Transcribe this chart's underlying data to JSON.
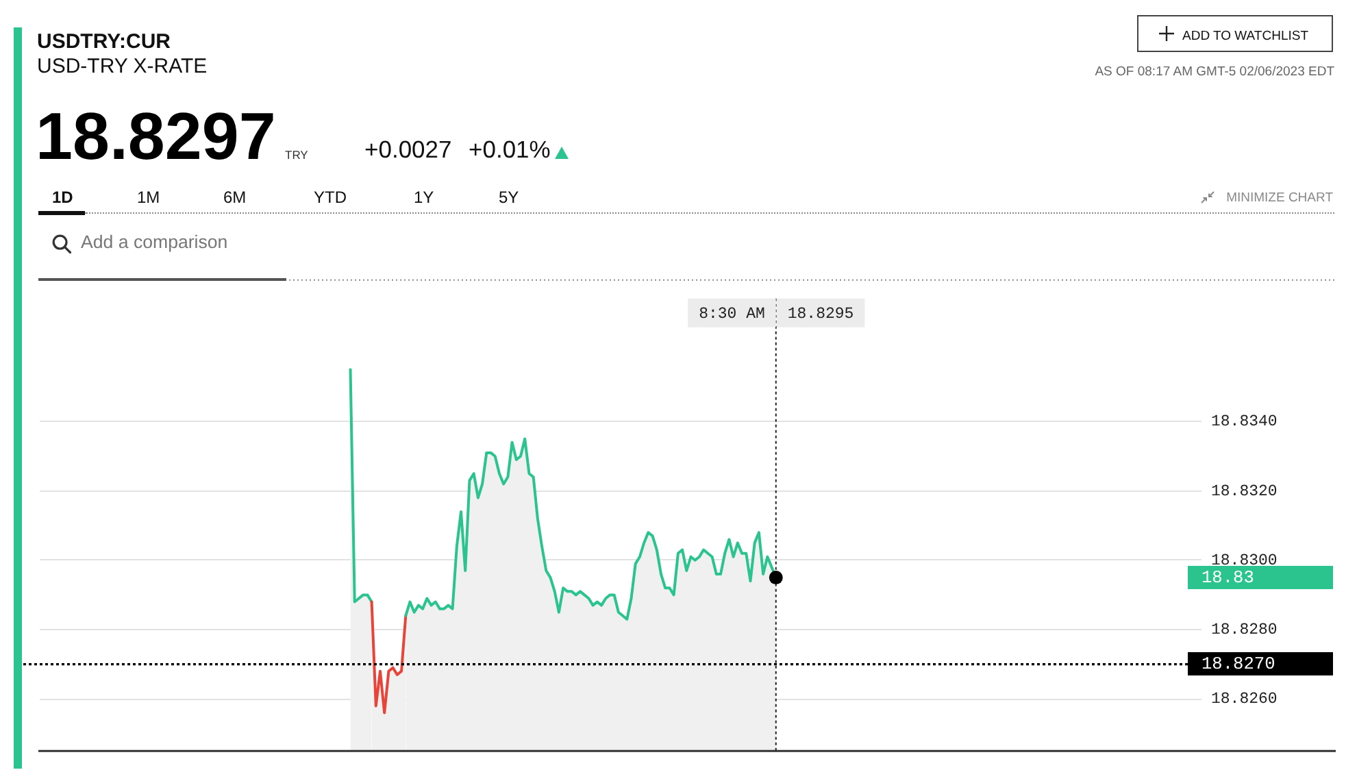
{
  "chart_data": {
    "type": "area",
    "title": "USDTRY:CUR",
    "subtitle": "USD-TRY X-RATE",
    "categories": [
      null,
      null,
      null,
      null,
      null,
      null,
      null,
      null,
      null,
      null,
      null,
      null,
      null,
      null,
      null,
      null,
      null,
      null,
      null,
      null,
      null,
      null,
      null,
      null,
      null,
      null,
      null,
      null,
      null,
      null,
      null,
      null,
      null,
      null,
      null,
      null,
      null,
      null,
      null,
      null,
      null,
      null,
      null,
      null,
      null,
      null,
      null,
      null,
      null,
      null,
      null,
      null,
      null,
      null,
      null,
      null,
      null,
      null,
      null,
      null,
      null,
      null,
      null,
      null,
      null,
      null,
      null,
      null,
      null,
      null,
      null,
      null,
      null,
      null,
      null,
      null,
      null,
      null,
      null,
      null,
      null,
      null,
      null,
      null,
      null,
      null,
      null,
      null,
      null,
      null,
      null,
      null,
      null,
      null,
      null,
      null,
      null,
      null,
      null,
      null,
      null,
      null,
      null,
      null,
      null,
      null,
      null,
      null,
      null,
      null,
      null,
      null,
      null,
      null,
      null,
      null,
      null,
      null,
      null,
      null,
      null,
      null,
      null,
      null,
      null,
      null,
      null,
      null,
      null,
      null,
      null,
      null,
      null,
      null,
      null,
      null,
      null,
      null,
      null,
      null,
      null,
      null,
      null,
      null,
      null,
      null,
      null,
      null,
      null,
      null,
      null,
      null,
      null,
      null,
      null,
      null,
      null,
      null,
      null,
      null,
      null,
      null,
      null,
      null,
      null,
      null,
      null,
      null,
      null,
      null,
      null,
      null,
      null,
      null,
      null,
      null,
      null,
      null,
      null,
      null,
      null,
      null,
      null,
      null,
      null,
      null,
      null,
      null,
      null,
      null,
      null,
      null,
      null,
      null,
      null,
      null,
      null,
      null,
      null,
      null,
      null,
      null,
      null,
      null,
      null,
      null,
      null,
      null,
      null,
      null,
      null,
      null,
      null,
      null,
      null,
      null,
      null,
      null,
      null,
      null,
      null,
      null,
      null,
      null,
      null,
      null,
      null,
      null,
      null,
      null,
      null,
      null,
      null,
      null,
      null,
      null,
      null,
      null,
      null,
      null,
      null,
      null,
      null,
      null,
      null,
      null,
      null,
      null,
      null,
      null,
      null,
      null,
      null,
      null,
      null,
      null,
      null,
      null,
      null,
      null,
      null,
      null,
      null,
      null,
      null,
      null,
      null,
      null,
      null,
      null,
      null,
      null,
      null,
      null
    ],
    "series": [
      {
        "color": "#2bc48f",
        "values": [
          null,
          null,
          null,
          null,
          null,
          null,
          null,
          null,
          null,
          null,
          null,
          null,
          null,
          null,
          null,
          null,
          null,
          null,
          null,
          null,
          null,
          null,
          null,
          null,
          null,
          null,
          null,
          null,
          null,
          null,
          null,
          null,
          null,
          null,
          null,
          null,
          null,
          null,
          null,
          null,
          null,
          null,
          null,
          null,
          null,
          null,
          null,
          null,
          null,
          null,
          null,
          null,
          null,
          null,
          null,
          null,
          null,
          null,
          null,
          null,
          null,
          null,
          null,
          null,
          null,
          null,
          null,
          null,
          null,
          null,
          null,
          null,
          null,
          18.8355,
          18.8288,
          18.8289,
          18.829,
          18.829,
          18.8288,
          18.8258,
          18.8268,
          18.8256,
          18.8268,
          18.8269,
          18.8267,
          18.8268,
          18.8284,
          18.8288,
          18.8285,
          18.8287,
          18.8286,
          18.8289,
          18.8287,
          18.8288,
          18.8286,
          18.8286,
          18.8287,
          18.8286,
          18.8304,
          18.8314,
          18.8297,
          18.8323,
          18.8325,
          18.8318,
          18.8322,
          18.8331,
          18.8331,
          18.833,
          18.8325,
          18.8322,
          18.8324,
          18.8334,
          18.8329,
          18.833,
          18.8335,
          18.8325,
          18.8324,
          18.8312,
          18.8304,
          18.8297,
          18.8295,
          18.8291,
          18.8285,
          18.8292,
          18.8291,
          18.8291,
          18.829,
          18.8291,
          18.829,
          18.8289,
          18.8287,
          18.8288,
          18.8287,
          18.8289,
          18.829,
          18.829,
          18.8285,
          18.8284,
          18.8283,
          18.8289,
          18.8299,
          18.8301,
          18.8305,
          18.8308,
          18.8307,
          18.8303,
          18.8296,
          18.8292,
          18.8292,
          18.829,
          18.8302,
          18.8303,
          18.8297,
          18.8301,
          18.83,
          18.8301,
          18.8303,
          18.8302,
          18.8301,
          18.8296,
          18.8296,
          18.8302,
          18.8306,
          18.8301,
          18.8305,
          18.8302,
          18.8302,
          18.8294,
          18.8305,
          18.8308,
          18.8296,
          18.8301,
          18.8298,
          18.8295,
          null,
          null,
          null,
          null,
          null,
          null,
          null,
          null,
          null,
          null,
          null,
          null,
          null,
          null,
          null,
          null,
          null,
          null,
          null,
          null,
          null,
          null,
          null,
          null,
          null,
          null,
          null,
          null,
          null,
          null,
          null,
          null,
          null,
          null,
          null,
          null,
          null,
          null,
          null,
          null,
          null,
          null,
          null,
          null,
          null,
          null,
          null,
          null,
          null,
          null,
          null,
          null,
          null,
          null,
          null,
          null,
          null,
          null,
          null,
          null,
          null,
          null,
          null,
          null,
          null,
          null,
          null,
          null,
          null,
          null,
          null,
          null,
          null,
          null,
          null,
          null,
          null,
          null,
          null,
          null,
          null,
          null,
          null,
          null,
          null,
          null,
          null,
          null,
          null,
          null,
          null,
          null,
          null,
          null,
          null,
          null,
          null,
          null,
          null,
          null
        ],
        "colors": [
          null,
          null,
          null,
          null,
          null,
          null,
          null,
          null,
          null,
          null,
          null,
          null,
          null,
          null,
          null,
          null,
          null,
          null,
          null,
          null,
          null,
          null,
          null,
          null,
          null,
          null,
          null,
          null,
          null,
          null,
          null,
          null,
          null,
          null,
          null,
          null,
          null,
          null,
          null,
          null,
          null,
          null,
          null,
          null,
          null,
          null,
          null,
          null,
          null,
          null,
          null,
          null,
          null,
          null,
          null,
          null,
          null,
          null,
          null,
          null,
          null,
          null,
          null,
          null,
          null,
          null,
          null,
          null,
          null,
          null,
          null,
          null,
          null,
          "#2bc48f",
          "#2bc48f",
          "#2bc48f",
          "#2bc48f",
          "#2bc48f",
          "#2bc48f",
          "#e8443a",
          "#e8443a",
          "#e8443a",
          "#e8443a",
          "#e8443a",
          "#e8443a",
          "#e8443a",
          "#2bc48f",
          "#2bc48f",
          "#2bc48f",
          "#2bc48f",
          "#2bc48f",
          "#2bc48f",
          "#2bc48f",
          "#2bc48f",
          "#2bc48f",
          "#2bc48f",
          "#2bc48f",
          "#2bc48f",
          "#2bc48f",
          "#2bc48f",
          "#2bc48f",
          "#2bc48f",
          "#2bc48f",
          "#2bc48f",
          "#2bc48f",
          "#2bc48f",
          "#2bc48f",
          "#2bc48f",
          "#2bc48f",
          "#2bc48f",
          "#2bc48f",
          "#2bc48f",
          "#2bc48f",
          "#2bc48f",
          "#2bc48f",
          "#2bc48f",
          "#2bc48f",
          "#2bc48f",
          "#2bc48f",
          "#2bc48f",
          "#2bc48f",
          "#2bc48f",
          "#2bc48f",
          "#2bc48f",
          "#2bc48f",
          "#2bc48f",
          "#2bc48f",
          "#2bc48f",
          "#2bc48f",
          "#2bc48f",
          "#2bc48f",
          "#2bc48f",
          "#2bc48f",
          "#2bc48f",
          "#2bc48f",
          "#2bc48f",
          "#2bc48f",
          "#2bc48f",
          "#2bc48f",
          "#2bc48f",
          "#2bc48f",
          "#2bc48f",
          "#2bc48f",
          "#2bc48f",
          "#2bc48f",
          "#2bc48f",
          "#2bc48f",
          "#2bc48f",
          "#2bc48f",
          "#2bc48f",
          "#2bc48f",
          "#2bc48f",
          "#2bc48f",
          "#2bc48f",
          "#2bc48f",
          "#2bc48f",
          "#2bc48f",
          "#2bc48f",
          "#2bc48f",
          "#2bc48f",
          "#2bc48f",
          "#2bc48f",
          "#2bc48f",
          "#2bc48f",
          "#2bc48f",
          "#2bc48f",
          "#2bc48f",
          "#2bc48f",
          "#2bc48f",
          "#2bc48f",
          "#2bc48f",
          "#2bc48f",
          "#2bc48f",
          "#2bc48f",
          null,
          null,
          null,
          null,
          null,
          null,
          null,
          null,
          null,
          null,
          null,
          null,
          null,
          null,
          null,
          null,
          null,
          null,
          null,
          null,
          null,
          null,
          null,
          null,
          null,
          null,
          null,
          null,
          null,
          null,
          null,
          null,
          null,
          null,
          null,
          null,
          null,
          null,
          null,
          null,
          null,
          null,
          null,
          null,
          null,
          null,
          null,
          null,
          null,
          null,
          null,
          null,
          null,
          null,
          null,
          null,
          null,
          null,
          null,
          null,
          null,
          null,
          null,
          null,
          null,
          null,
          null,
          null,
          null,
          null,
          null,
          null,
          null,
          null,
          null,
          null,
          null,
          null,
          null,
          null,
          null,
          null,
          null,
          null,
          null,
          null,
          null,
          null,
          null,
          null,
          null,
          null,
          null,
          null,
          null,
          null,
          null,
          null,
          null,
          null
        ]
      }
    ],
    "ylim": [
      18.8245,
      18.8381
    ],
    "yticks": [
      {
        "value": 18.826,
        "label": "18.8260"
      },
      {
        "value": 18.828,
        "label": "18.8280"
      },
      {
        "value": 18.83,
        "label": "18.8300"
      },
      {
        "value": 18.832,
        "label": "18.8320"
      },
      {
        "value": 18.834,
        "label": "18.8340"
      }
    ],
    "grid": "y",
    "tick_labels": "y",
    "ref_lines": [
      {
        "axis": "y",
        "value": 18.827,
        "label": "18.8270",
        "color": "#000000",
        "line_style": "dotted"
      }
    ],
    "annotations": [
      "18.8297",
      "TRY",
      "+0.0027",
      "+0.01%",
      "ADD TO WATCHLIST",
      "AS OF 08:17 AM GMT-5 02/06/2023 EDT",
      "1D",
      "1M",
      "6M",
      "YTD",
      "1Y",
      "5Y",
      "MINIMIZE CHART",
      "Add a comparison",
      "8:30 AM",
      "18.8295",
      "18.83"
    ]
  }
}
